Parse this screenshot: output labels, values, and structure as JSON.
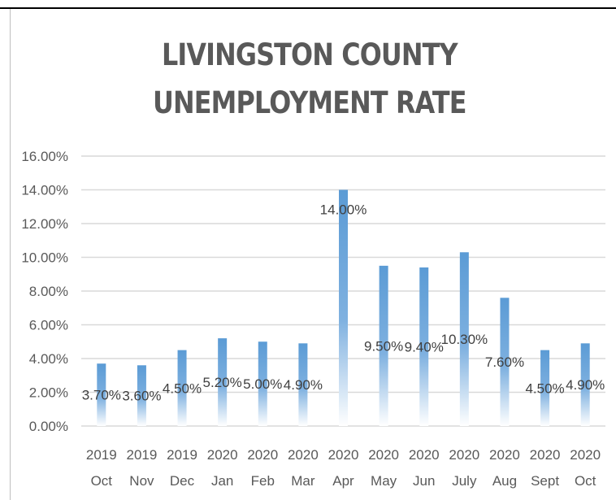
{
  "chart_data": {
    "type": "bar",
    "title_lines": [
      "LIVINGSTON COUNTY",
      "UNEMPLOYMENT RATE"
    ],
    "categories": [
      [
        "2019",
        "Oct"
      ],
      [
        "2019",
        "Nov"
      ],
      [
        "2019",
        "Dec"
      ],
      [
        "2020",
        "Jan"
      ],
      [
        "2020",
        "Feb"
      ],
      [
        "2020",
        "Mar"
      ],
      [
        "2020",
        "Apr"
      ],
      [
        "2020",
        "May"
      ],
      [
        "2020",
        "Jun"
      ],
      [
        "2020",
        "July"
      ],
      [
        "2020",
        "Aug"
      ],
      [
        "2020",
        "Sept"
      ],
      [
        "2020",
        "Oct"
      ]
    ],
    "values": [
      3.7,
      3.6,
      4.5,
      5.2,
      5.0,
      4.9,
      14.0,
      9.5,
      9.4,
      10.3,
      7.6,
      4.5,
      4.9
    ],
    "data_labels": [
      "3.70%",
      "3.60%",
      "4.50%",
      "5.20%",
      "5.00%",
      "4.90%",
      "14.00%",
      "9.50%",
      "9.40%",
      "10.30%",
      "7.60%",
      "4.50%",
      "4.90%"
    ],
    "ylim": [
      0,
      16
    ],
    "yticks": [
      0,
      2,
      4,
      6,
      8,
      10,
      12,
      14,
      16
    ],
    "ytick_labels": [
      "0.00%",
      "2.00%",
      "4.00%",
      "6.00%",
      "8.00%",
      "10.00%",
      "12.00%",
      "14.00%",
      "16.00%"
    ],
    "xlabel": "",
    "ylabel": "",
    "grid": true,
    "legend": "none",
    "bar_color": "#5b9bd5",
    "grid_color": "#d9d9d9"
  }
}
